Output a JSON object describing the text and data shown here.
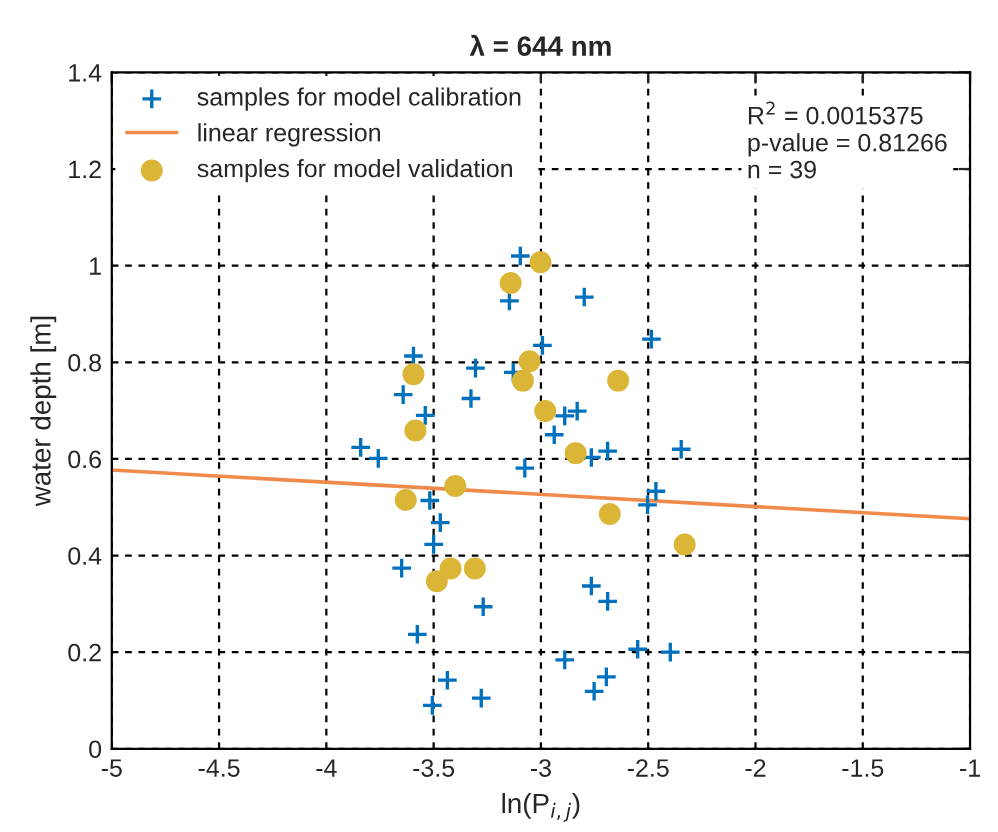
{
  "chart_data": {
    "type": "scatter",
    "title": "λ = 644 nm",
    "xlabel": "ln(P$_{i,j}$)",
    "ylabel": "water depth [m]",
    "xlim": [
      -5,
      -1
    ],
    "xticks": [
      -5,
      -4.5,
      -4,
      -3.5,
      -3,
      -2.5,
      -2,
      -1.5,
      -1
    ],
    "ylim": [
      0,
      1.4
    ],
    "yticks": [
      0,
      0.2,
      0.4,
      0.6,
      0.8,
      1,
      1.2,
      1.4
    ],
    "grid": true,
    "legend": "top left",
    "annotations": [
      "R$^{2}$ = 0.0015375\np-value = 0.81266\nn = 39"
    ],
    "series": [
      {
        "name": "samples for model calibration",
        "marker": "cross",
        "color": "#0072bd",
        "x": [
          -3.594,
          -3.642,
          -3.539,
          -3.326,
          -3.305,
          -3.84,
          -3.758,
          -3.518,
          -3.469,
          -3.5,
          -3.649,
          -3.269,
          -3.576,
          -3.436,
          -3.506,
          -3.278,
          -3.096,
          -3.147,
          -2.798,
          -2.993,
          -3.129,
          -2.889,
          -2.831,
          -2.938,
          -2.765,
          -2.689,
          -3.075,
          -2.485,
          -2.346,
          -2.464,
          -2.503,
          -2.765,
          -2.689,
          -2.889,
          -2.549,
          -2.397,
          -2.695,
          -2.752
        ],
        "values": [
          0.813,
          0.733,
          0.69,
          0.725,
          0.788,
          0.624,
          0.601,
          0.514,
          0.468,
          0.423,
          0.374,
          0.294,
          0.237,
          0.142,
          0.09,
          0.105,
          1.02,
          0.927,
          0.935,
          0.835,
          0.779,
          0.689,
          0.699,
          0.65,
          0.603,
          0.616,
          0.581,
          0.848,
          0.62,
          0.533,
          0.505,
          0.337,
          0.305,
          0.184,
          0.206,
          0.2,
          0.149,
          0.119
        ]
      },
      {
        "name": "linear regression",
        "type": "line",
        "marker": "none",
        "line_style": "solid",
        "color": "#f08a4b",
        "x": [
          -5,
          -1
        ],
        "values": [
          0.577,
          0.476
        ]
      },
      {
        "name": "samples for model validation",
        "marker": "circle",
        "color": "#dbb536",
        "x": [
          -3.594,
          -3.585,
          -3.399,
          -3.63,
          -3.421,
          -3.308,
          -3.485,
          -3.002,
          -3.141,
          -3.053,
          -3.084,
          -2.64,
          -2.98,
          -2.838,
          -2.679,
          -2.33
        ],
        "values": [
          0.775,
          0.659,
          0.544,
          0.515,
          0.373,
          0.373,
          0.347,
          1.007,
          0.964,
          0.802,
          0.762,
          0.762,
          0.699,
          0.612,
          0.486,
          0.423
        ]
      }
    ]
  }
}
